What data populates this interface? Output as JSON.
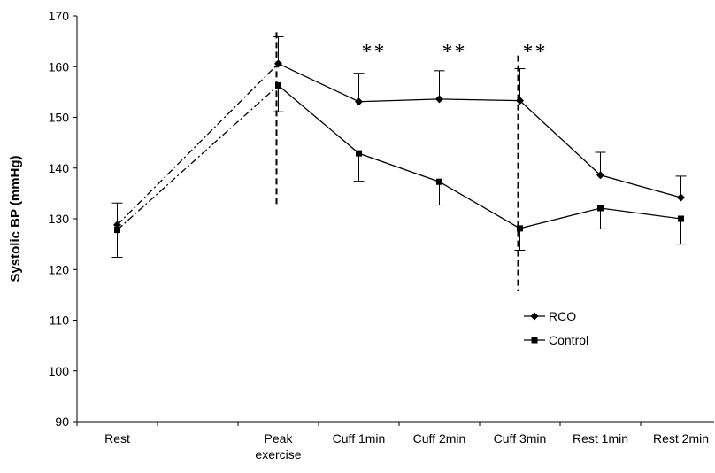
{
  "chart_data": {
    "type": "line",
    "ylabel": "Systolic BP (mmHg)",
    "ylim": [
      90,
      170
    ],
    "yticks": [
      90,
      100,
      110,
      120,
      130,
      140,
      150,
      160,
      170
    ],
    "categories": [
      "Rest",
      "",
      "Peak exercise",
      "Cuff 1min",
      "Cuff 2min",
      "Cuff 3min",
      "Rest 1min",
      "Rest 2min"
    ],
    "category_lines": [
      [
        "Rest"
      ],
      [
        ""
      ],
      [
        "Peak",
        "exercise"
      ],
      [
        "Cuff 1min"
      ],
      [
        "Cuff 2min"
      ],
      [
        "Cuff 3min"
      ],
      [
        "Rest 1min"
      ],
      [
        "Rest 2min"
      ]
    ],
    "series": [
      {
        "name": "RCO",
        "marker": "diamond",
        "values": [
          128.8,
          null,
          160.6,
          153.1,
          153.6,
          153.3,
          138.6,
          134.2
        ],
        "error_up": [
          4.3,
          null,
          5.3,
          5.6,
          5.6,
          6.3,
          4.5,
          4.2
        ]
      },
      {
        "name": "Control",
        "marker": "square",
        "values": [
          127.8,
          null,
          156.3,
          142.9,
          137.3,
          128.1,
          132.1,
          130.0
        ],
        "error_down": [
          5.4,
          null,
          5.2,
          5.5,
          4.6,
          4.3,
          4.1,
          5.0
        ]
      }
    ],
    "rest_to_peak_connector": "dash-dot",
    "vertical_dashed_lines_at": [
      "Peak exercise",
      "Cuff 3min"
    ],
    "annotations": [
      {
        "text": "**",
        "category": "Cuff 1min"
      },
      {
        "text": "**",
        "category": "Cuff 2min"
      },
      {
        "text": "**",
        "category": "Cuff 3min"
      }
    ],
    "legend": {
      "position": "right-center",
      "entries": [
        "RCO",
        "Control"
      ]
    },
    "grid": false
  }
}
